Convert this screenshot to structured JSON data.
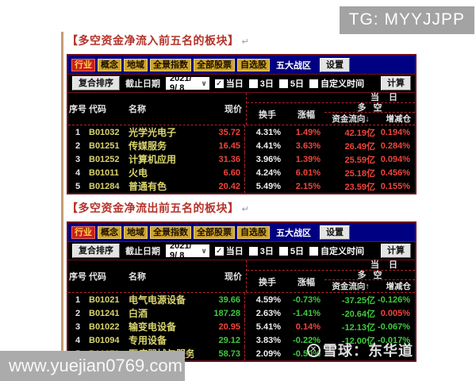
{
  "overlays": {
    "tg_badge": "TG: MYYJJPP",
    "site_badge": "www.yuejian0769.com",
    "brand_watermark": "雪球：东华道",
    "brand_logo_glyph": "✕"
  },
  "toolbar": {
    "tabs": [
      "行业",
      "概念",
      "地域",
      "全景指数",
      "全部股票",
      "自选股"
    ],
    "active_tab": "行业",
    "zone_label": "五大战区",
    "settings_label": "设置",
    "sort_button": "复合排序",
    "date_label": "截止日期",
    "date_value": "2021/ 9/ 8",
    "select_chevron": "∨",
    "check_glyph": "✓",
    "checkboxes": [
      "当日",
      "3日",
      "5日",
      "自定义时间"
    ],
    "calc_button": "计算"
  },
  "table_header": {
    "seq": "序号",
    "code": "代码",
    "name": "名称",
    "price": "现价",
    "day": "当日",
    "turnover": "换手",
    "change": "涨幅",
    "long_short": "多空",
    "position": "增减仓"
  },
  "sections": [
    {
      "title": "【多空资金净流入前五名的板块】",
      "return_glyph": "↵",
      "flow_label": "资金流向↓",
      "rows": [
        {
          "seq": "1",
          "code": "B01032",
          "name": "光学光电子",
          "price": "35.72",
          "price_c": "red",
          "turn": "4.31%",
          "chg": "1.49%",
          "chg_c": "red",
          "flow": "42.19亿",
          "flow_c": "red",
          "pos": "0.194%",
          "pos_c": "red"
        },
        {
          "seq": "2",
          "code": "B01251",
          "name": "传媒服务",
          "price": "16.45",
          "price_c": "red",
          "turn": "4.41%",
          "chg": "3.63%",
          "chg_c": "red",
          "flow": "26.49亿",
          "flow_c": "red",
          "pos": "0.284%",
          "pos_c": "red"
        },
        {
          "seq": "3",
          "code": "B01252",
          "name": "计算机应用",
          "price": "31.36",
          "price_c": "red",
          "turn": "3.96%",
          "chg": "1.39%",
          "chg_c": "red",
          "flow": "25.59亿",
          "flow_c": "red",
          "pos": "0.094%",
          "pos_c": "red"
        },
        {
          "seq": "4",
          "code": "B01011",
          "name": "火电",
          "price": "6.60",
          "price_c": "red",
          "turn": "4.24%",
          "chg": "6.01%",
          "chg_c": "red",
          "flow": "25.18亿",
          "flow_c": "red",
          "pos": "0.456%",
          "pos_c": "red"
        },
        {
          "seq": "5",
          "code": "B01284",
          "name": "普通有色",
          "price": "20.42",
          "price_c": "red",
          "turn": "5.49%",
          "chg": "2.15%",
          "chg_c": "red",
          "flow": "23.59亿",
          "flow_c": "red",
          "pos": "0.155%",
          "pos_c": "red"
        }
      ]
    },
    {
      "title": "【多空资金净流出前五名的板块】",
      "return_glyph": "↵",
      "flow_label": "资金流向↑",
      "rows": [
        {
          "seq": "1",
          "code": "B01021",
          "name": "电气电源设备",
          "price": "39.66",
          "price_c": "green",
          "turn": "4.59%",
          "chg": "-0.73%",
          "chg_c": "green",
          "flow": "-37.25亿",
          "flow_c": "green",
          "pos": "-0.126%",
          "pos_c": "green"
        },
        {
          "seq": "2",
          "code": "B01241",
          "name": "白酒",
          "price": "187.28",
          "price_c": "green",
          "turn": "2.63%",
          "chg": "-1.41%",
          "chg_c": "green",
          "flow": "-20.64亿",
          "flow_c": "green",
          "pos": "0.005%",
          "pos_c": "red"
        },
        {
          "seq": "3",
          "code": "B01022",
          "name": "输变电设备",
          "price": "20.95",
          "price_c": "red",
          "turn": "5.41%",
          "chg": "0.14%",
          "chg_c": "red",
          "flow": "-12.13亿",
          "flow_c": "green",
          "pos": "-0.067%",
          "pos_c": "green"
        },
        {
          "seq": "4",
          "code": "B01094",
          "name": "专用设备",
          "price": "29.12",
          "price_c": "green",
          "turn": "3.83%",
          "chg": "-0.22%",
          "chg_c": "green",
          "flow": "-12.00亿",
          "flow_c": "green",
          "pos": "-0.017%",
          "pos_c": "green"
        },
        {
          "seq": "5",
          "code": "B01273",
          "name": "医疗器械与服务",
          "price": "58.73",
          "price_c": "green",
          "turn": "2.09%",
          "chg": "-0.50%",
          "chg_c": "green",
          "flow": "",
          "flow_c": "green",
          "pos": "",
          "pos_c": "green"
        }
      ]
    }
  ],
  "colors": {
    "up": "#f0453a",
    "down": "#3ecb3e",
    "accent_navy": "#000082",
    "tab_gold": "#cfa42b",
    "active_red": "#c61f1f"
  }
}
